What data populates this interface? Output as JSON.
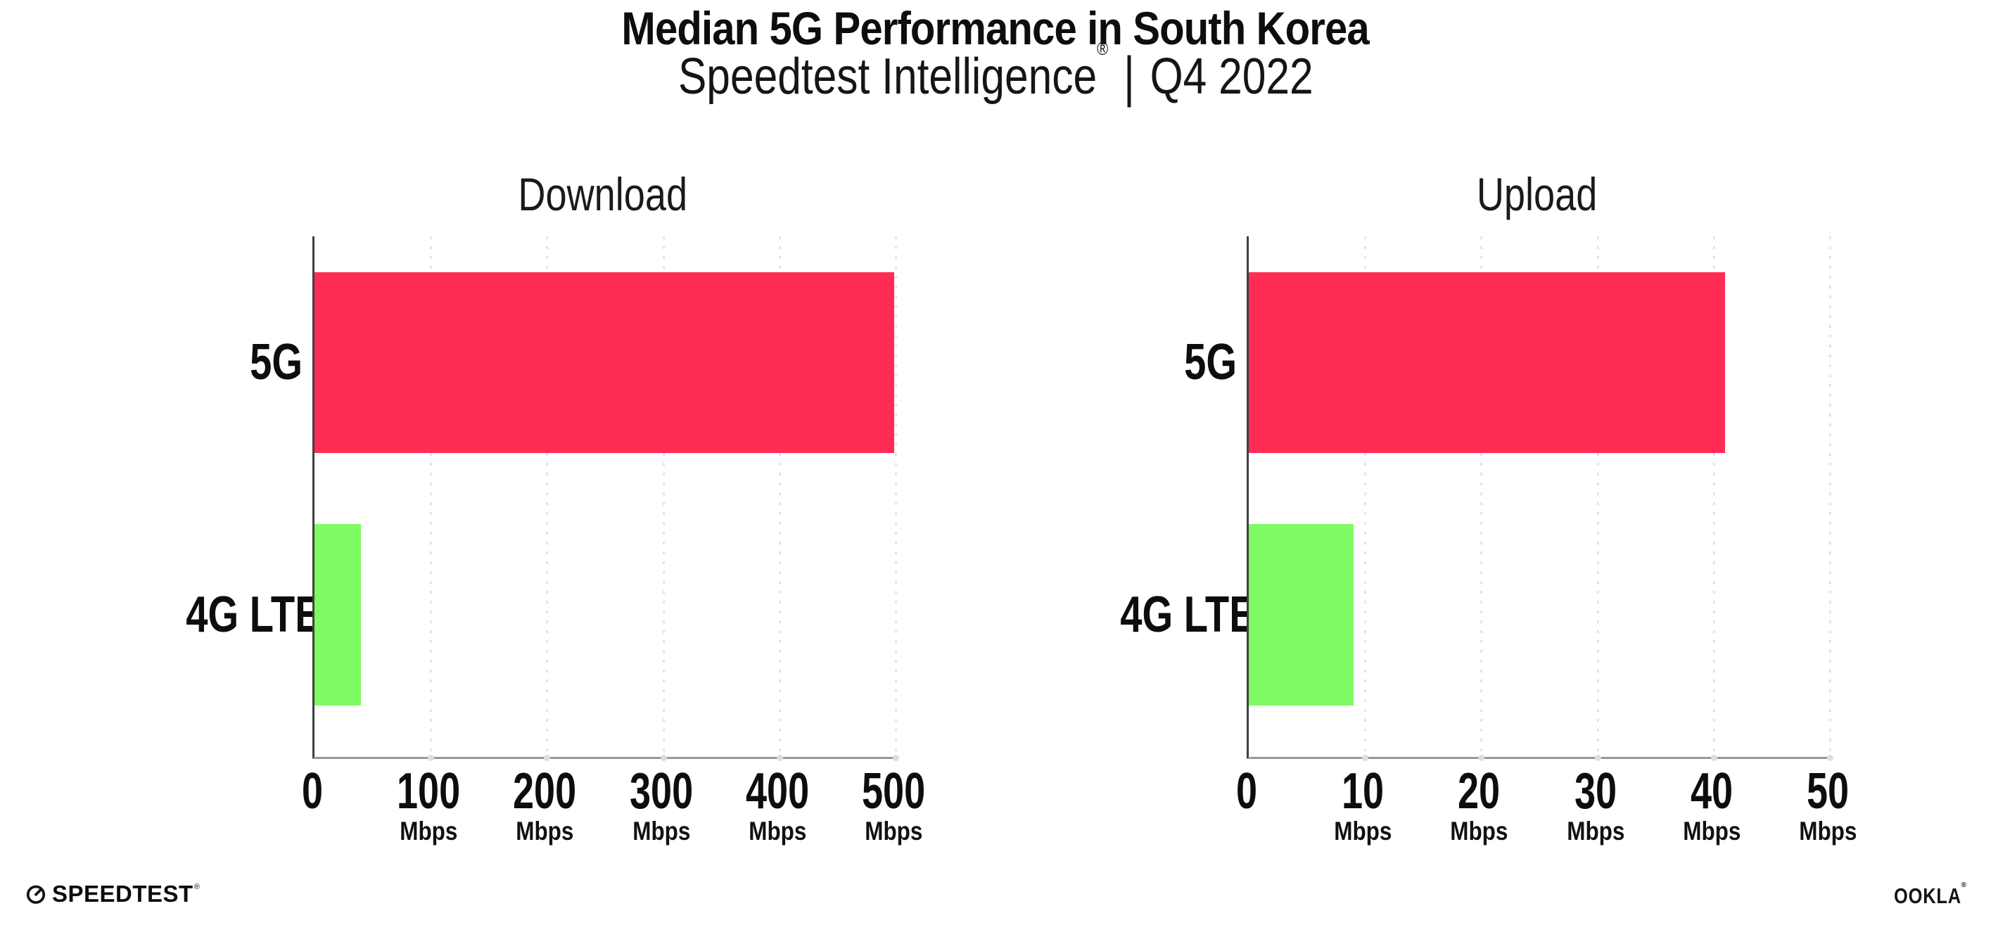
{
  "header": {
    "title": "Median 5G Performance in South Korea",
    "subtitle_brand": "Speedtest Intelligence",
    "subtitle_reg": "®",
    "subtitle_separator": "|",
    "subtitle_period": "Q4 2022"
  },
  "colors": {
    "bar_5g": "#FF2D55",
    "bar_4g": "#7EFB62",
    "gridline": "#e2e2ef",
    "x_axis": "#97979c",
    "y_axis": "#3e3e46",
    "text": "#0d0d0d"
  },
  "chart_data": [
    {
      "type": "bar",
      "orientation": "horizontal",
      "title": "Download",
      "categories": [
        "5G",
        "4G LTE"
      ],
      "values": [
        499,
        40
      ],
      "unit": "Mbps",
      "xlim": [
        0,
        500
      ],
      "xtick_values": [
        0,
        100,
        200,
        300,
        400,
        500
      ],
      "xticks": [
        {
          "label": "0",
          "unit": ""
        },
        {
          "label": "100",
          "unit": "Mbps"
        },
        {
          "label": "200",
          "unit": "Mbps"
        },
        {
          "label": "300",
          "unit": "Mbps"
        },
        {
          "label": "400",
          "unit": "Mbps"
        },
        {
          "label": "500",
          "unit": "Mbps"
        }
      ],
      "bar_colors": [
        "#FF2D55",
        "#7EFB62"
      ],
      "grid": "vertical-dotted",
      "legend": false
    },
    {
      "type": "bar",
      "orientation": "horizontal",
      "title": "Upload",
      "categories": [
        "5G",
        "4G LTE"
      ],
      "values": [
        41,
        9
      ],
      "unit": "Mbps",
      "xlim": [
        0,
        50
      ],
      "xtick_values": [
        0,
        10,
        20,
        30,
        40,
        50
      ],
      "xticks": [
        {
          "label": "0",
          "unit": ""
        },
        {
          "label": "10",
          "unit": "Mbps"
        },
        {
          "label": "20",
          "unit": "Mbps"
        },
        {
          "label": "30",
          "unit": "Mbps"
        },
        {
          "label": "40",
          "unit": "Mbps"
        },
        {
          "label": "50",
          "unit": "Mbps"
        }
      ],
      "bar_colors": [
        "#FF2D55",
        "#7EFB62"
      ],
      "grid": "vertical-dotted",
      "legend": false
    }
  ],
  "footer": {
    "speedtest_text": "SPEEDTEST",
    "speedtest_reg": "®",
    "ookla_text": "OOKLA",
    "ookla_reg": "®"
  }
}
